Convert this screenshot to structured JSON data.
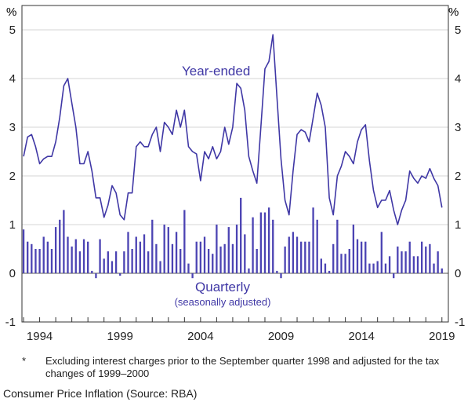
{
  "chart_data": {
    "type": "line+bar",
    "y_unit_label": "%",
    "ylim": [
      -1,
      5.5
    ],
    "y_ticks": [
      -1,
      0,
      1,
      2,
      3,
      4,
      5
    ],
    "x_tick_labels": [
      "1994",
      "1999",
      "2004",
      "2009",
      "2014",
      "2019"
    ],
    "x_tick_years": [
      1994,
      1999,
      2004,
      2009,
      2014,
      2019
    ],
    "xlim": [
      1992.9,
      2019.4
    ],
    "series": [
      {
        "name": "Year-ended",
        "type": "line",
        "x": [
          1993.0,
          1993.25,
          1993.5,
          1993.75,
          1994.0,
          1994.25,
          1994.5,
          1994.75,
          1995.0,
          1995.25,
          1995.5,
          1995.75,
          1996.0,
          1996.25,
          1996.5,
          1996.75,
          1997.0,
          1997.25,
          1997.5,
          1997.75,
          1998.0,
          1998.25,
          1998.5,
          1998.75,
          1999.0,
          1999.25,
          1999.5,
          1999.75,
          2000.0,
          2000.25,
          2000.5,
          2000.75,
          2001.0,
          2001.25,
          2001.5,
          2001.75,
          2002.0,
          2002.25,
          2002.5,
          2002.75,
          2003.0,
          2003.25,
          2003.5,
          2003.75,
          2004.0,
          2004.25,
          2004.5,
          2004.75,
          2005.0,
          2005.25,
          2005.5,
          2005.75,
          2006.0,
          2006.25,
          2006.5,
          2006.75,
          2007.0,
          2007.25,
          2007.5,
          2007.75,
          2008.0,
          2008.25,
          2008.5,
          2008.75,
          2009.0,
          2009.25,
          2009.5,
          2009.75,
          2010.0,
          2010.25,
          2010.5,
          2010.75,
          2011.0,
          2011.25,
          2011.5,
          2011.75,
          2012.0,
          2012.25,
          2012.5,
          2012.75,
          2013.0,
          2013.25,
          2013.5,
          2013.75,
          2014.0,
          2014.25,
          2014.5,
          2014.75,
          2015.0,
          2015.25,
          2015.5,
          2015.75,
          2016.0,
          2016.25,
          2016.5,
          2016.75,
          2017.0,
          2017.25,
          2017.5,
          2017.75,
          2018.0,
          2018.25,
          2018.5,
          2018.75,
          2019.0
        ],
        "values": [
          2.4,
          2.8,
          2.85,
          2.6,
          2.25,
          2.35,
          2.4,
          2.4,
          2.7,
          3.2,
          3.85,
          4.0,
          3.5,
          3.0,
          2.25,
          2.25,
          2.5,
          2.1,
          1.55,
          1.55,
          1.15,
          1.4,
          1.8,
          1.65,
          1.2,
          1.1,
          1.65,
          1.65,
          2.6,
          2.7,
          2.6,
          2.6,
          2.85,
          3.0,
          2.5,
          3.1,
          3.0,
          2.85,
          3.35,
          3.0,
          3.35,
          2.6,
          2.5,
          2.45,
          1.9,
          2.5,
          2.35,
          2.6,
          2.35,
          2.5,
          3.0,
          2.65,
          3.0,
          3.9,
          3.8,
          3.35,
          2.4,
          2.1,
          1.85,
          3.0,
          4.2,
          4.35,
          4.9,
          3.6,
          2.35,
          1.5,
          1.2,
          2.1,
          2.85,
          2.95,
          2.9,
          2.7,
          3.2,
          3.7,
          3.45,
          3.0,
          1.55,
          1.2,
          2.0,
          2.2,
          2.5,
          2.4,
          2.25,
          2.7,
          2.95,
          3.05,
          2.3,
          1.7,
          1.35,
          1.5,
          1.5,
          1.7,
          1.3,
          1.0,
          1.3,
          1.5,
          2.1,
          1.95,
          1.85,
          2.0,
          1.95,
          2.15,
          1.95,
          1.8,
          1.35
        ]
      },
      {
        "name": "Quarterly",
        "type": "bar",
        "x": [
          1993.0,
          1993.25,
          1993.5,
          1993.75,
          1994.0,
          1994.25,
          1994.5,
          1994.75,
          1995.0,
          1995.25,
          1995.5,
          1995.75,
          1996.0,
          1996.25,
          1996.5,
          1996.75,
          1997.0,
          1997.25,
          1997.5,
          1997.75,
          1998.0,
          1998.25,
          1998.5,
          1998.75,
          1999.0,
          1999.25,
          1999.5,
          1999.75,
          2000.0,
          2000.25,
          2000.5,
          2000.75,
          2001.0,
          2001.25,
          2001.5,
          2001.75,
          2002.0,
          2002.25,
          2002.5,
          2002.75,
          2003.0,
          2003.25,
          2003.5,
          2003.75,
          2004.0,
          2004.25,
          2004.5,
          2004.75,
          2005.0,
          2005.25,
          2005.5,
          2005.75,
          2006.0,
          2006.25,
          2006.5,
          2006.75,
          2007.0,
          2007.25,
          2007.5,
          2007.75,
          2008.0,
          2008.25,
          2008.5,
          2008.75,
          2009.0,
          2009.25,
          2009.5,
          2009.75,
          2010.0,
          2010.25,
          2010.5,
          2010.75,
          2011.0,
          2011.25,
          2011.5,
          2011.75,
          2012.0,
          2012.25,
          2012.5,
          2012.75,
          2013.0,
          2013.25,
          2013.5,
          2013.75,
          2014.0,
          2014.25,
          2014.5,
          2014.75,
          2015.0,
          2015.25,
          2015.5,
          2015.75,
          2016.0,
          2016.25,
          2016.5,
          2016.75,
          2017.0,
          2017.25,
          2017.5,
          2017.75,
          2018.0,
          2018.25,
          2018.5,
          2018.75,
          2019.0
        ],
        "values": [
          0.9,
          0.65,
          0.6,
          0.5,
          0.5,
          0.75,
          0.65,
          0.5,
          0.95,
          1.1,
          1.3,
          0.75,
          0.55,
          0.7,
          0.45,
          0.7,
          0.65,
          0.05,
          -0.1,
          0.7,
          0.3,
          0.45,
          0.25,
          0.45,
          -0.05,
          0.45,
          0.85,
          0.5,
          0.75,
          0.65,
          0.8,
          0.45,
          1.1,
          0.6,
          0.25,
          1.0,
          0.95,
          0.6,
          0.85,
          0.5,
          1.3,
          0.2,
          -0.1,
          0.65,
          0.65,
          0.75,
          0.5,
          0.4,
          1.0,
          0.55,
          0.6,
          0.95,
          0.6,
          1.0,
          1.55,
          0.8,
          0.1,
          1.15,
          0.5,
          1.25,
          1.25,
          1.35,
          1.1,
          0.05,
          -0.1,
          0.55,
          0.75,
          0.85,
          0.75,
          0.65,
          0.65,
          0.65,
          1.35,
          1.1,
          0.3,
          0.2,
          0.05,
          0.6,
          1.1,
          0.4,
          0.4,
          0.5,
          1.0,
          0.7,
          0.65,
          0.65,
          0.2,
          0.2,
          0.25,
          0.85,
          0.2,
          0.35,
          -0.1,
          0.55,
          0.45,
          0.45,
          0.65,
          0.35,
          0.35,
          0.65,
          0.55,
          0.6,
          0.2,
          0.45,
          0.1
        ]
      }
    ],
    "annotations": {
      "year_ended": "Year-ended",
      "quarterly": "Quarterly",
      "seasonally": "(seasonally adjusted)"
    },
    "colors": {
      "line": "#3f37a5",
      "bar": "#4b43b3",
      "axis": "#333333",
      "grid": "#d6d6d6"
    }
  },
  "footnote": {
    "marker": "*",
    "text": "Excluding interest charges prior to the September quarter 1998 and adjusted for the tax changes of 1999–2000"
  },
  "caption": "Consumer Price Inflation (Source: RBA)"
}
